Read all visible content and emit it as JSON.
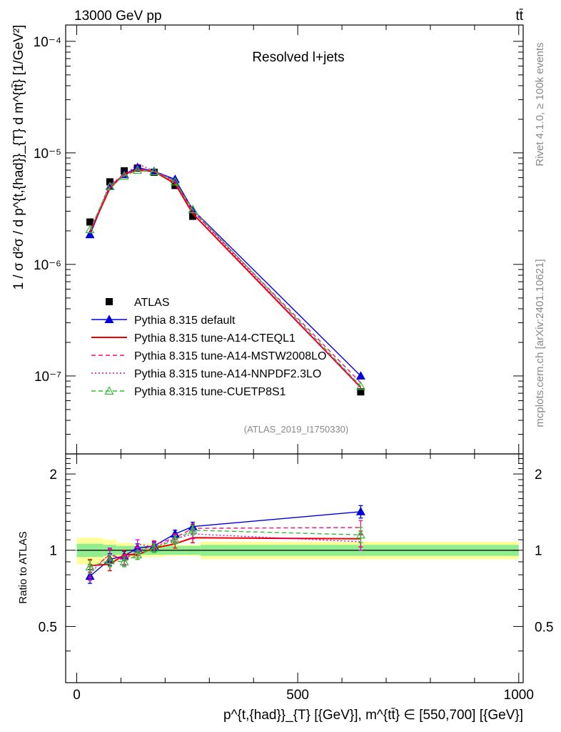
{
  "header": {
    "energy": "13000 GeV pp",
    "process": "tt̄"
  },
  "side": {
    "rivet": "Rivet 4.1.0, ≥ 100k events",
    "mcplots": "mcplots.cern.ch [arXiv:2401.10621]"
  },
  "chart_data": [
    {
      "type": "line",
      "title": "Resolved l+jets",
      "analysis_tag": "(ATLAS_2019_I1750330)",
      "ylabel": "1 / σ d²σ / d p^{t,{had}}_{T} d m^{tt̄} [1/GeV²]",
      "yscale": "log",
      "ylim": [
        2e-08,
        0.00014
      ],
      "xlim": [
        -25,
        1010
      ],
      "y_ticks": [
        {
          "value": 0.0001,
          "label": "10⁻⁴"
        },
        {
          "value": 1e-05,
          "label": "10⁻⁵"
        },
        {
          "value": 1e-06,
          "label": "10⁻⁶"
        },
        {
          "value": 1e-07,
          "label": "10⁻⁷"
        }
      ],
      "series": [
        {
          "name": "ATLAS",
          "color": "#000000",
          "marker": "square",
          "style": "none",
          "x": [
            30,
            75,
            107.5,
            137.5,
            175,
            222.5,
            262.5,
            642.5
          ],
          "y": [
            2.4e-06,
            5.5e-06,
            6.9e-06,
            7.3e-06,
            6.7e-06,
            5.1e-06,
            2.7e-06,
            7.2e-08
          ]
        },
        {
          "name": "Pythia 8.315 default",
          "color": "#0000dd",
          "marker": "triangle",
          "style": "solid",
          "x": [
            30,
            75,
            107.5,
            137.5,
            175,
            222.5,
            262.5,
            642.5
          ],
          "y": [
            1.85e-06,
            5e-06,
            6.4e-06,
            7.4e-06,
            6.85e-06,
            5.8e-06,
            3.1e-06,
            1e-07
          ]
        },
        {
          "name": "Pythia 8.315 tune-A14-CTEQL1",
          "color": "#ee0000",
          "marker": "none",
          "style": "solid",
          "x": [
            30,
            75,
            107.5,
            137.5,
            175,
            222.5,
            262.5,
            642.5
          ],
          "y": [
            1.95e-06,
            4.8e-06,
            6.5e-06,
            7e-06,
            6.8e-06,
            5.3e-06,
            2.85e-06,
            7.9e-08
          ]
        },
        {
          "name": "Pythia 8.315 tune-A14-MSTW2008LO",
          "color": "#ee1177",
          "marker": "none",
          "style": "dashed",
          "x": [
            30,
            75,
            107.5,
            137.5,
            175,
            222.5,
            262.5,
            642.5
          ],
          "y": [
            2e-06,
            5.2e-06,
            6.3e-06,
            7.2e-06,
            6.9e-06,
            5.6e-06,
            3e-06,
            8.7e-08
          ]
        },
        {
          "name": "Pythia 8.315 tune-A14-NNPDF2.3LO",
          "color": "#dd00dd",
          "marker": "none",
          "style": "dotted",
          "x": [
            30,
            75,
            107.5,
            137.5,
            175,
            222.5,
            262.5,
            642.5
          ],
          "y": [
            1.9e-06,
            5.3e-06,
            6.2e-06,
            8e-06,
            6.9e-06,
            5.5e-06,
            3e-06,
            7.8e-08
          ]
        },
        {
          "name": "Pythia 8.315 tune-CUETP8S1",
          "color": "#33bb33",
          "marker": "open-triangle",
          "style": "dashed",
          "x": [
            30,
            75,
            107.5,
            137.5,
            175,
            222.5,
            262.5,
            642.5
          ],
          "y": [
            2.05e-06,
            5e-06,
            6.2e-06,
            7e-06,
            6.8e-06,
            5.5e-06,
            3.1e-06,
            8.1e-08
          ]
        }
      ]
    },
    {
      "type": "line",
      "title": "",
      "ylabel": "Ratio to ATLAS",
      "xlabel": "p^{t,{had}}_{T} [{GeV}], m^{tt̄} ∈ [550,700] [{GeV}]",
      "xlim": [
        -25,
        1010
      ],
      "ylim": [
        0.3,
        2.4
      ],
      "y_ticks": [
        {
          "value": 0.5,
          "label": "0.5"
        },
        {
          "value": 1,
          "label": "1"
        },
        {
          "value": 2,
          "label": "2"
        }
      ],
      "x_ticks": [
        {
          "value": 0,
          "label": "0"
        },
        {
          "value": 500,
          "label": "500"
        },
        {
          "value": 1000,
          "label": "1000"
        }
      ],
      "bins": [
        [
          0,
          60
        ],
        [
          60,
          90
        ],
        [
          90,
          125
        ],
        [
          125,
          150
        ],
        [
          150,
          200
        ],
        [
          200,
          245
        ],
        [
          245,
          280
        ],
        [
          280,
          1000
        ]
      ],
      "band_stat": [
        0.06,
        0.05,
        0.04,
        0.04,
        0.04,
        0.04,
        0.04,
        0.05
      ],
      "band_total": [
        0.12,
        0.1,
        0.07,
        0.06,
        0.06,
        0.05,
        0.05,
        0.08
      ],
      "band_colors": {
        "inner": "#90ee90",
        "outer": "#ffff99"
      },
      "series": [
        {
          "name": "Pythia 8.315 default",
          "color": "#0000dd",
          "marker": "triangle",
          "style": "solid",
          "x": [
            30,
            75,
            107.5,
            137.5,
            175,
            222.5,
            262.5,
            642.5
          ],
          "y": [
            0.79,
            0.92,
            0.95,
            1.02,
            1.04,
            1.16,
            1.24,
            1.42
          ],
          "err": [
            0.05,
            0.05,
            0.04,
            0.04,
            0.04,
            0.04,
            0.05,
            0.08
          ]
        },
        {
          "name": "Pythia 8.315 tune-A14-CTEQL1",
          "color": "#ee0000",
          "marker": "none",
          "style": "solid",
          "x": [
            30,
            75,
            107.5,
            137.5,
            175,
            222.5,
            262.5,
            642.5
          ],
          "y": [
            0.87,
            0.88,
            0.96,
            0.96,
            1.02,
            1.06,
            1.12,
            1.11
          ],
          "err": [
            0.05,
            0.05,
            0.04,
            0.04,
            0.04,
            0.04,
            0.05,
            0.08
          ]
        },
        {
          "name": "Pythia 8.315 tune-A14-MSTW2008LO",
          "color": "#ee1177",
          "marker": "none",
          "style": "dashed",
          "x": [
            30,
            75,
            107.5,
            137.5,
            175,
            222.5,
            262.5,
            642.5
          ],
          "y": [
            0.83,
            0.96,
            0.92,
            0.99,
            1.05,
            1.12,
            1.22,
            1.23
          ],
          "err": [
            0.05,
            0.05,
            0.04,
            0.04,
            0.04,
            0.04,
            0.05,
            0.08
          ]
        },
        {
          "name": "Pythia 8.315 tune-A14-NNPDF2.3LO",
          "color": "#dd00dd",
          "marker": "none",
          "style": "dotted",
          "x": [
            30,
            75,
            107.5,
            137.5,
            175,
            222.5,
            262.5,
            642.5
          ],
          "y": [
            0.81,
            0.97,
            0.91,
            1.06,
            1.03,
            1.11,
            1.16,
            1.08
          ],
          "err": [
            0.05,
            0.05,
            0.04,
            0.04,
            0.04,
            0.04,
            0.05,
            0.08
          ]
        },
        {
          "name": "Pythia 8.315 tune-CUETP8S1",
          "color": "#33bb33",
          "marker": "open-triangle",
          "style": "dashed",
          "x": [
            30,
            75,
            107.5,
            137.5,
            175,
            222.5,
            262.5,
            642.5
          ],
          "y": [
            0.86,
            0.91,
            0.9,
            0.96,
            1.02,
            1.1,
            1.2,
            1.15
          ],
          "err": [
            0.05,
            0.05,
            0.04,
            0.04,
            0.04,
            0.04,
            0.05,
            0.08
          ]
        }
      ]
    }
  ]
}
